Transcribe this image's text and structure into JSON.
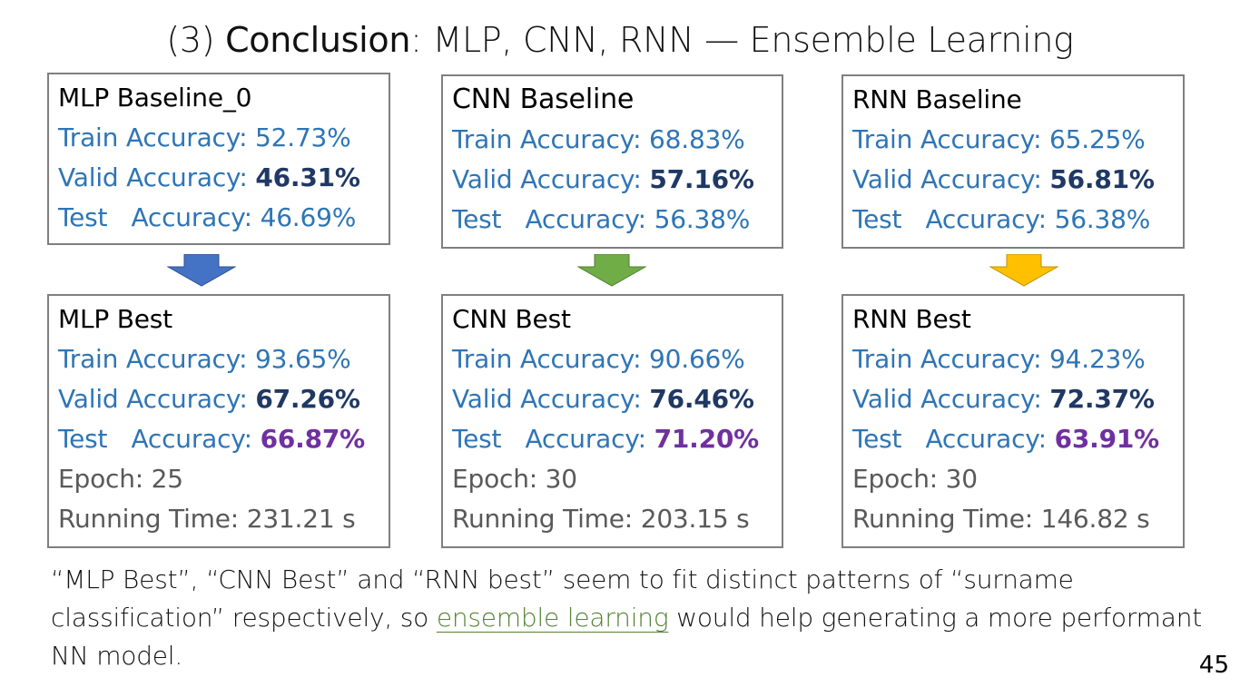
{
  "slide": {
    "title_prefix": "(3) ",
    "title_bold": "Conclusion",
    "title_rest": ": MLP, CNN, RNN — Ensemble Learning",
    "page_number": "45"
  },
  "labels": {
    "train": "Train Accuracy: ",
    "valid": "Valid Accuracy: ",
    "test": "Test   Accuracy: ",
    "epoch": "Epoch: ",
    "running_time": "Running Time: "
  },
  "baselines": [
    {
      "name": "MLP Baseline_0",
      "train": "52.73%",
      "valid": "46.31%",
      "test": "46.69%"
    },
    {
      "name": "CNN Baseline",
      "train": "68.83%",
      "valid": "57.16%",
      "test": "56.38%"
    },
    {
      "name": "RNN Baseline",
      "train": "65.25%",
      "valid": "56.81%",
      "test": "56.38%"
    }
  ],
  "best": [
    {
      "name": "MLP Best",
      "train": "93.65%",
      "valid": "67.26%",
      "test": "66.87%",
      "epoch": "25",
      "running_time": "231.21 s"
    },
    {
      "name": "CNN Best",
      "train": "90.66%",
      "valid": "76.46%",
      "test": "71.20%",
      "epoch": "30",
      "running_time": "203.15 s"
    },
    {
      "name": "RNN Best",
      "train": "94.23%",
      "valid": "72.37%",
      "test": "63.91%",
      "epoch": "30",
      "running_time": "146.82 s"
    }
  ],
  "arrows": {
    "colors": [
      "#4472c4",
      "#70ad47",
      "#ffc000"
    ]
  },
  "conclusion": {
    "part1": "“MLP Best”, “CNN Best” and “RNN best” seem to fit distinct patterns of “surname classification” respectively, so ",
    "link": "ensemble learning",
    "part2": " would help generating a more performant NN model."
  }
}
